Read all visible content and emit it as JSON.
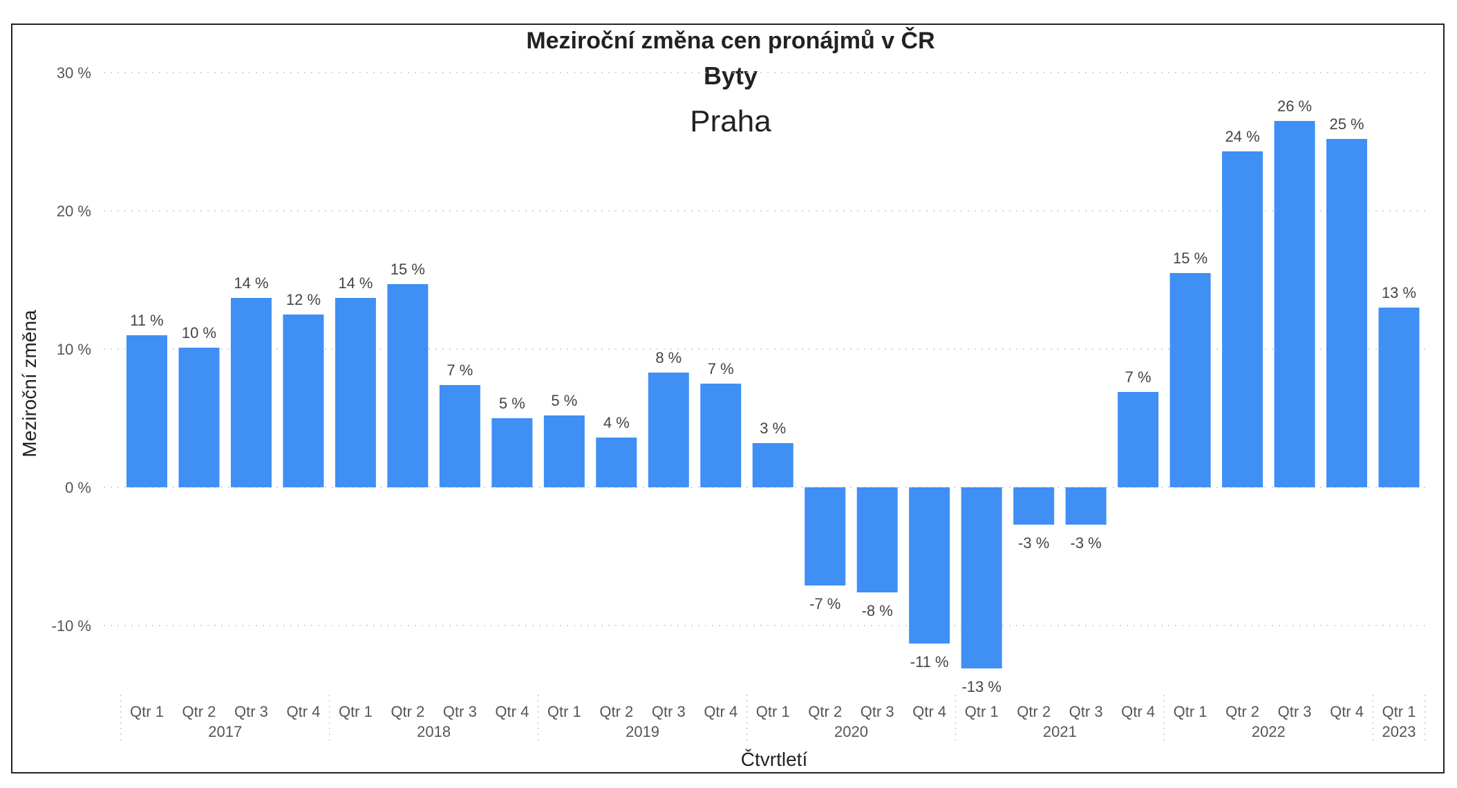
{
  "chart_data": {
    "type": "bar",
    "title": "Meziroční změna cen pronájmů v ČR",
    "subtitle": "Byty",
    "region": "Praha",
    "xlabel": "Čtvrtletí",
    "ylabel": "Meziroční změna",
    "ylim": [
      -15,
      30
    ],
    "yticks": [
      30,
      20,
      10,
      0,
      -10
    ],
    "ytick_labels": [
      "30 %",
      "20 %",
      "10 %",
      "0 %",
      "-10 %"
    ],
    "grid": true,
    "bar_color": "#3f8ff5",
    "categories": [
      "Qtr 1",
      "Qtr 2",
      "Qtr 3",
      "Qtr 4",
      "Qtr 1",
      "Qtr 2",
      "Qtr 3",
      "Qtr 4",
      "Qtr 1",
      "Qtr 2",
      "Qtr 3",
      "Qtr 4",
      "Qtr 1",
      "Qtr 2",
      "Qtr 3",
      "Qtr 4",
      "Qtr 1",
      "Qtr 2",
      "Qtr 3",
      "Qtr 4",
      "Qtr 1",
      "Qtr 2",
      "Qtr 3",
      "Qtr 4",
      "Qtr 1"
    ],
    "years": [
      {
        "label": "2017",
        "count": 4
      },
      {
        "label": "2018",
        "count": 4
      },
      {
        "label": "2019",
        "count": 4
      },
      {
        "label": "2020",
        "count": 4
      },
      {
        "label": "2021",
        "count": 4
      },
      {
        "label": "2022",
        "count": 4
      },
      {
        "label": "2023",
        "count": 1
      }
    ],
    "values": [
      11.0,
      10.1,
      13.7,
      12.5,
      13.7,
      14.7,
      7.4,
      5.0,
      5.2,
      3.6,
      8.3,
      7.5,
      3.2,
      -7.1,
      -7.6,
      -11.3,
      -13.1,
      -2.7,
      -2.7,
      6.9,
      15.5,
      24.3,
      26.5,
      25.2,
      13.0
    ],
    "value_labels": [
      "11 %",
      "10 %",
      "14 %",
      "12 %",
      "14 %",
      "15 %",
      "7 %",
      "5 %",
      "5 %",
      "4 %",
      "8 %",
      "7 %",
      "3 %",
      "-7 %",
      "-8 %",
      "-11 %",
      "-13 %",
      "-3 %",
      "-3 %",
      "7 %",
      "15 %",
      "24 %",
      "26 %",
      "25 %",
      "13 %"
    ]
  }
}
